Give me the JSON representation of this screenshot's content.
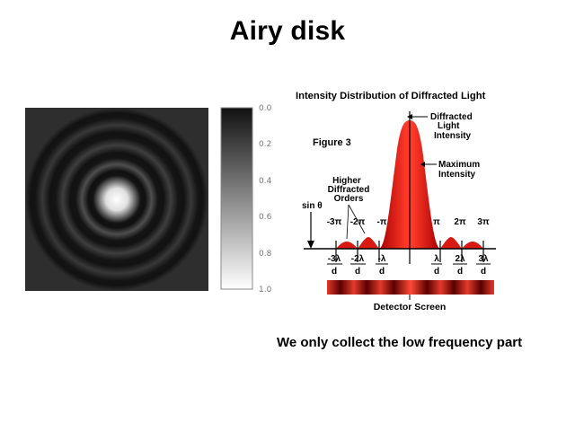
{
  "slide": {
    "title": "Airy disk",
    "caption": "We only collect the low frequency part"
  },
  "colorbar": {
    "ticks": [
      "0.0",
      "0.2",
      "0.4",
      "0.6",
      "0.8",
      "1.0"
    ]
  },
  "diagram": {
    "title": "Intensity Distribution of Diffracted Light",
    "figure_label": "Figure 3",
    "callouts": {
      "diffracted_light_intensity": [
        "Diffracted",
        "Light",
        "Intensity"
      ],
      "maximum_intensity": [
        "Maximum",
        "Intensity"
      ],
      "higher_orders": [
        "Higher",
        "Diffracted",
        "Orders"
      ]
    },
    "sin_label": "sin θ",
    "phase_labels": [
      "-3π",
      "-2π",
      "-π",
      "π",
      "2π",
      "3π"
    ],
    "fraction_numerators": [
      "-3λ",
      "-2λ",
      "-λ",
      "λ",
      "2λ",
      "3λ"
    ],
    "fraction_denominator": "d",
    "detector_label": "Detector Screen",
    "colors": {
      "peak": "#e8130f",
      "detector": "#e0281e"
    }
  }
}
